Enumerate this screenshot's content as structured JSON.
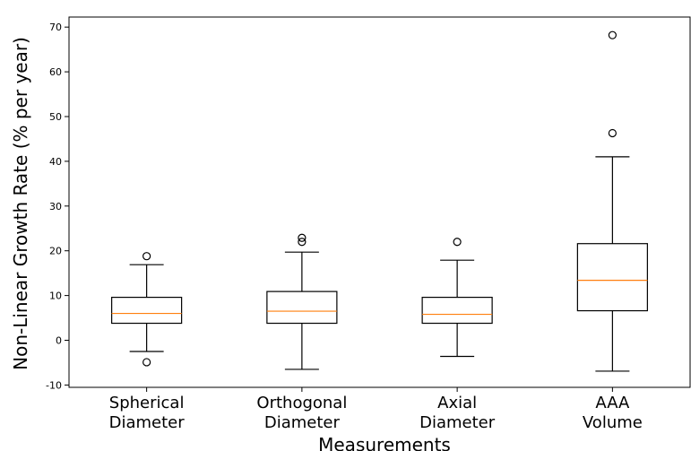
{
  "chart_data": {
    "type": "box",
    "xlabel": "Measurements",
    "ylabel": "Non-Linear Growth Rate (% per year)",
    "ylim": [
      -10.5,
      72
    ],
    "yticks": [
      -10,
      0,
      10,
      20,
      30,
      40,
      50,
      60,
      70
    ],
    "grid": false,
    "categories": [
      [
        "Spherical",
        "Diameter"
      ],
      [
        "Orthogonal",
        "Diameter"
      ],
      [
        "Axial",
        "Diameter"
      ],
      [
        "AAA",
        "Volume"
      ]
    ],
    "boxes": [
      {
        "whisker_low": -2.5,
        "q1": 3.8,
        "median": 6.0,
        "q3": 9.6,
        "whisker_high": 16.9,
        "outliers": [
          18.8,
          -4.9
        ]
      },
      {
        "whisker_low": -6.5,
        "q1": 3.8,
        "median": 6.5,
        "q3": 10.9,
        "whisker_high": 19.7,
        "outliers": [
          22.0,
          22.9
        ]
      },
      {
        "whisker_low": -3.6,
        "q1": 3.8,
        "median": 5.8,
        "q3": 9.6,
        "whisker_high": 17.9,
        "outliers": [
          22.0
        ]
      },
      {
        "whisker_low": -6.9,
        "q1": 6.6,
        "median": 13.4,
        "q3": 21.6,
        "whisker_high": 41.0,
        "outliers": [
          46.3,
          68.2
        ]
      }
    ],
    "colors": {
      "box": "#000000",
      "median": "#ff7f0e"
    }
  }
}
